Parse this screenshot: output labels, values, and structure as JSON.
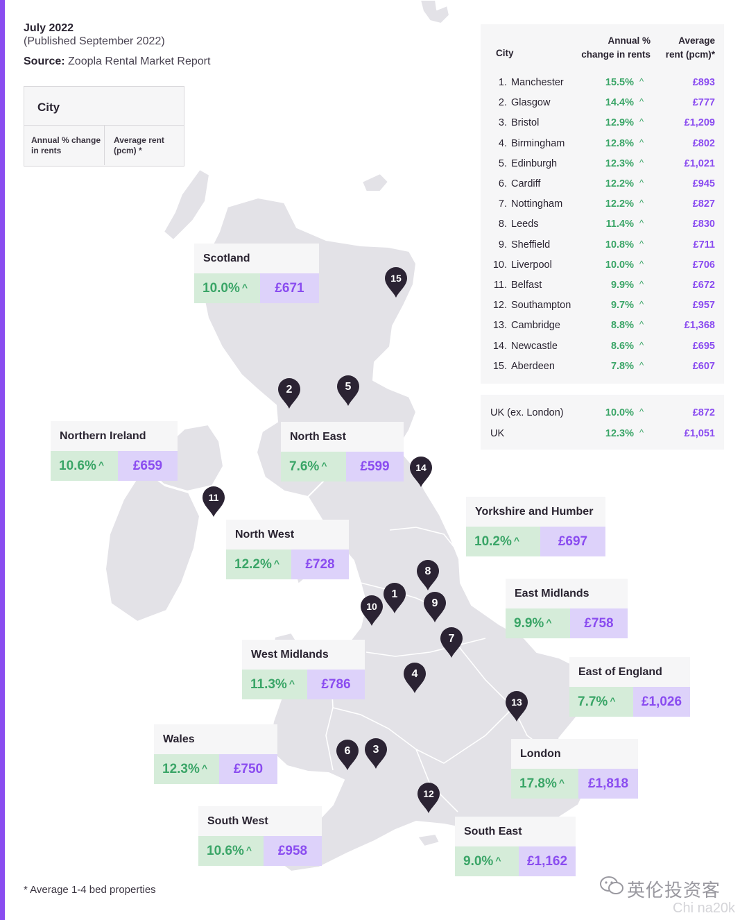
{
  "header": {
    "date": "July 2022",
    "published": "(Published September 2022)",
    "source_label": "Source:",
    "source_text": " Zoopla Rental Market Report"
  },
  "key": {
    "city": "City",
    "change": "Annual % change in rents",
    "rent": "Average rent (pcm) *"
  },
  "ranking": {
    "head_city": "City",
    "head_change_1": "Annual %",
    "head_change_2": "change in rents",
    "head_rent_1": "Average",
    "head_rent_2": "rent (pcm)*",
    "rows": [
      {
        "num": "1.",
        "city": "Manchester",
        "change": "15.5%",
        "rent": "£893"
      },
      {
        "num": "2.",
        "city": "Glasgow",
        "change": "14.4%",
        "rent": "£777"
      },
      {
        "num": "3.",
        "city": "Bristol",
        "change": "12.9%",
        "rent": "£1,209"
      },
      {
        "num": "4.",
        "city": "Birmingham",
        "change": "12.8%",
        "rent": "£802"
      },
      {
        "num": "5.",
        "city": "Edinburgh",
        "change": "12.3%",
        "rent": "£1,021"
      },
      {
        "num": "6.",
        "city": "Cardiff",
        "change": "12.2%",
        "rent": "£945"
      },
      {
        "num": "7.",
        "city": "Nottingham",
        "change": "12.2%",
        "rent": "£827"
      },
      {
        "num": "8.",
        "city": "Leeds",
        "change": "11.4%",
        "rent": "£830"
      },
      {
        "num": "9.",
        "city": "Sheffield",
        "change": "10.8%",
        "rent": "£711"
      },
      {
        "num": "10.",
        "city": "Liverpool",
        "change": "10.0%",
        "rent": "£706"
      },
      {
        "num": "11.",
        "city": "Belfast",
        "change": "9.9%",
        "rent": "£672"
      },
      {
        "num": "12.",
        "city": "Southampton",
        "change": "9.7%",
        "rent": "£957"
      },
      {
        "num": "13.",
        "city": "Cambridge",
        "change": "8.8%",
        "rent": "£1,368"
      },
      {
        "num": "14.",
        "city": "Newcastle",
        "change": "8.6%",
        "rent": "£695"
      },
      {
        "num": "15.",
        "city": "Aberdeen",
        "change": "7.8%",
        "rent": "£607"
      }
    ],
    "totals": [
      {
        "city": "UK (ex. London)",
        "change": "10.0%",
        "rent": "£872"
      },
      {
        "city": "UK",
        "change": "12.3%",
        "rent": "£1,051"
      }
    ]
  },
  "regions": [
    {
      "name": "Scotland",
      "change": "10.0%",
      "rent": "£671"
    },
    {
      "name": "Northern Ireland",
      "change": "10.6%",
      "rent": "£659"
    },
    {
      "name": "North East",
      "change": "7.6%",
      "rent": "£599"
    },
    {
      "name": "North West",
      "change": "12.2%",
      "rent": "£728"
    },
    {
      "name": "Yorkshire and Humber",
      "change": "10.2%",
      "rent": "£697"
    },
    {
      "name": "East Midlands",
      "change": "9.9%",
      "rent": "£758"
    },
    {
      "name": "West Midlands",
      "change": "11.3%",
      "rent": "£786"
    },
    {
      "name": "East of England",
      "change": "7.7%",
      "rent": "£1,026"
    },
    {
      "name": "Wales",
      "change": "12.3%",
      "rent": "£750"
    },
    {
      "name": "London",
      "change": "17.8%",
      "rent": "£1,818"
    },
    {
      "name": "South West",
      "change": "10.6%",
      "rent": "£958"
    },
    {
      "name": "South East",
      "change": "9.0%",
      "rent": "£1,162"
    }
  ],
  "pins": [
    "1",
    "2",
    "3",
    "4",
    "5",
    "6",
    "7",
    "8",
    "9",
    "10",
    "11",
    "12",
    "13",
    "14",
    "15"
  ],
  "footnote": "* Average 1-4 bed properties",
  "watermark": "英伦投资客",
  "watermark_latin": "Chi na20k",
  "colors": {
    "accent": "#8a4cf0",
    "positive_green": "#3aa567",
    "green_bg": "#d5ecd9",
    "purple_bg": "#ddd2fa",
    "land": "#e3e2e7",
    "pin": "#2b2333"
  },
  "icons": {
    "up": "^",
    "pin": "map-pin-icon",
    "wechat": "wechat-icon"
  }
}
